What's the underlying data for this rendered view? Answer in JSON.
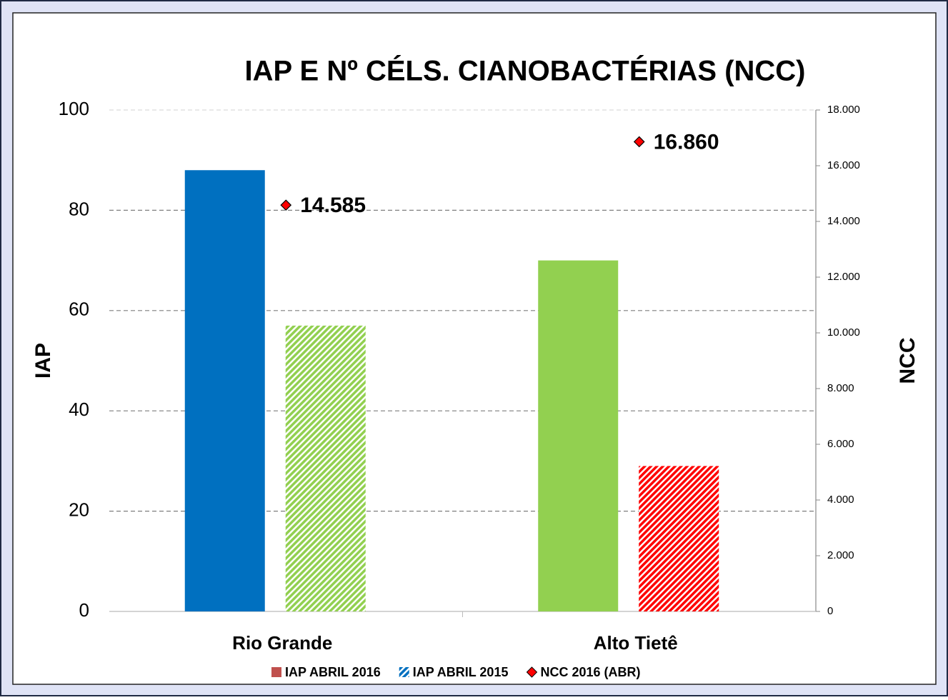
{
  "chart_data": {
    "type": "bar",
    "title": "IAP E Nº CÉLS. CIANOBACTÉRIAS (NCC)",
    "ylabel": "IAP",
    "y2label": "NCC",
    "categories": [
      "Rio Grande",
      "Alto Tietê"
    ],
    "series": [
      {
        "name": "IAP ABRIL 2016",
        "color": "#c0504d",
        "colors": [
          "#0070c0",
          "#92d050"
        ],
        "values": [
          88,
          70
        ]
      },
      {
        "name": "IAP ABRIL 2015",
        "color": "#0070c0",
        "colors": [
          "#92d050",
          "#ff0000"
        ],
        "hatch": true,
        "values": [
          57,
          29
        ]
      },
      {
        "name": "NCC 2016 (ABR)",
        "type": "scatter",
        "axis": "y2",
        "color": "#ff0000",
        "values": [
          14585,
          16860
        ],
        "value_labels": [
          "14.585",
          "16.860"
        ]
      }
    ],
    "ylim": [
      0,
      100
    ],
    "yticks": [
      0,
      20,
      40,
      60,
      80,
      100
    ],
    "y2lim": [
      0,
      18000
    ],
    "y2ticks": [
      0,
      {
        "value": 2000,
        "label": "2.000"
      },
      {
        "value": 4000,
        "label": "4.000"
      },
      {
        "value": 6000,
        "label": "6.000"
      },
      {
        "value": 8000,
        "label": "8.000"
      },
      {
        "value": 10000,
        "label": "10.000"
      },
      {
        "value": 12000,
        "label": "12.000"
      },
      {
        "value": 14000,
        "label": "14.000"
      },
      {
        "value": 16000,
        "label": "16.000"
      },
      {
        "value": 18000,
        "label": "18.000"
      }
    ],
    "grid": true,
    "legend": "bottom"
  }
}
